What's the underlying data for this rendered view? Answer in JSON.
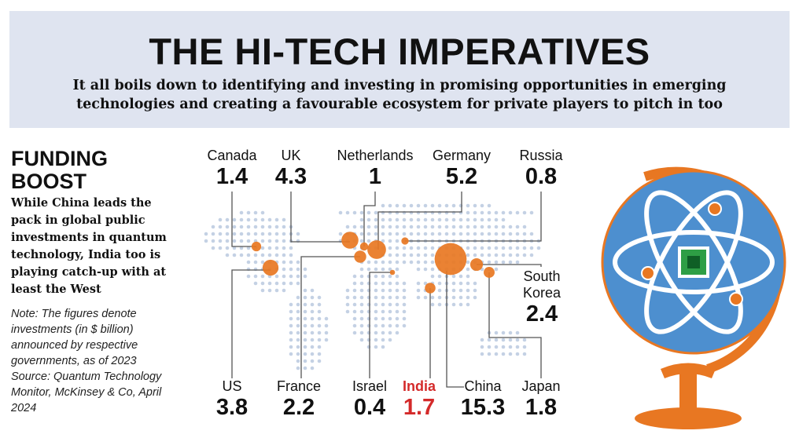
{
  "header": {
    "title": "THE HI-TECH IMPERATIVES",
    "subtitle": "It all boils down to identifying and investing in promising opportunities in emerging technologies and creating a favourable ecosystem for private players to pitch in too"
  },
  "sidebar": {
    "title": "FUNDING BOOST",
    "description": "While China leads the pack in global public investments in quantum technology, India too is playing catch-up with at least the West",
    "note": "Note: The figures denote investments (in $ billion) announced by respective governments, as of 2023",
    "source": "Source: Quantum Technology Monitor, McKinsey & Co, April 2024"
  },
  "map": {
    "bubble_color": "#e87722",
    "countries": [
      {
        "name": "Canada",
        "value": 1.4
      },
      {
        "name": "UK",
        "value": 4.3
      },
      {
        "name": "Netherlands",
        "value": 1
      },
      {
        "name": "Germany",
        "value": 5.2
      },
      {
        "name": "Russia",
        "value": 0.8
      },
      {
        "name": "US",
        "value": 3.8
      },
      {
        "name": "France",
        "value": 2.2
      },
      {
        "name": "Israel",
        "value": 0.4
      },
      {
        "name": "India",
        "value": 1.7,
        "label_color": "#d42a2a"
      },
      {
        "name": "China",
        "value": 15.3
      },
      {
        "name": "South Korea",
        "value": 2.4
      },
      {
        "name": "Japan",
        "value": 1.8
      }
    ]
  }
}
